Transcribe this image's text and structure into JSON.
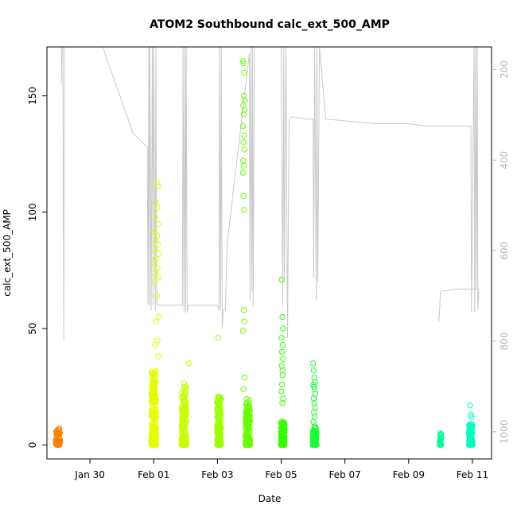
{
  "chart_data": {
    "type": "scatter",
    "title": "ATOM2 Southbound calc_ext_500_AMP",
    "xlabel": "Date",
    "ylabel": "calc_ext_500_AMP",
    "x_axis": {
      "unit": "days since Jan 29",
      "ticks": [
        {
          "value": 1,
          "label": "Jan 30"
        },
        {
          "value": 3,
          "label": "Feb 01"
        },
        {
          "value": 5,
          "label": "Feb 03"
        },
        {
          "value": 7,
          "label": "Feb 05"
        },
        {
          "value": 9,
          "label": "Feb 07"
        },
        {
          "value": 11,
          "label": "Feb 09"
        },
        {
          "value": 13,
          "label": "Feb 11"
        }
      ],
      "range": [
        -0.35,
        13.6
      ]
    },
    "y_axis": {
      "ticks": [
        0,
        50,
        100,
        150
      ],
      "range": [
        -6,
        171
      ]
    },
    "y2_axis": {
      "ticks": [
        200,
        400,
        600,
        800,
        1000
      ],
      "range": [
        1060,
        150
      ],
      "color": "#b8b8b8"
    },
    "line_series": {
      "color": "#c8c8c8",
      "points": [
        [
          0.1,
          155
        ],
        [
          0.12,
          171
        ],
        [
          0.15,
          171
        ],
        [
          0.18,
          45
        ],
        [
          0.2,
          171
        ],
        [
          0.3,
          171
        ],
        [
          0.6,
          171
        ],
        [
          0.85,
          171
        ],
        [
          1.4,
          171
        ],
        [
          2.35,
          134
        ],
        [
          2.8,
          128
        ],
        [
          2.82,
          60
        ],
        [
          2.85,
          171
        ],
        [
          2.87,
          60
        ],
        [
          2.88,
          171
        ],
        [
          2.92,
          58
        ],
        [
          2.96,
          171
        ],
        [
          2.98,
          60
        ],
        [
          3.0,
          171
        ],
        [
          3.05,
          58
        ],
        [
          3.07,
          171
        ],
        [
          3.1,
          60
        ],
        [
          3.3,
          60
        ],
        [
          3.5,
          60
        ],
        [
          3.75,
          60
        ],
        [
          3.9,
          60
        ],
        [
          3.92,
          171
        ],
        [
          3.95,
          57
        ],
        [
          3.98,
          171
        ],
        [
          4.0,
          57
        ],
        [
          4.02,
          171
        ],
        [
          4.05,
          57
        ],
        [
          4.08,
          60
        ],
        [
          4.2,
          60
        ],
        [
          5.0,
          60
        ],
        [
          5.05,
          58
        ],
        [
          5.06,
          171
        ],
        [
          5.1,
          58
        ],
        [
          5.12,
          171
        ],
        [
          5.15,
          50
        ],
        [
          5.18,
          58
        ],
        [
          5.25,
          58
        ],
        [
          5.3,
          86
        ],
        [
          6.0,
          168
        ],
        [
          6.02,
          62
        ],
        [
          6.05,
          171
        ],
        [
          6.08,
          66
        ],
        [
          6.1,
          171
        ],
        [
          6.12,
          60
        ],
        [
          6.16,
          171
        ],
        [
          6.2,
          171
        ],
        [
          6.4,
          171
        ],
        [
          6.45,
          171
        ],
        [
          6.6,
          171
        ],
        [
          6.8,
          171
        ],
        [
          7.0,
          171
        ],
        [
          7.05,
          60
        ],
        [
          7.08,
          171
        ],
        [
          7.1,
          72
        ],
        [
          7.15,
          171
        ],
        [
          7.2,
          46
        ],
        [
          7.25,
          140
        ],
        [
          7.35,
          141
        ],
        [
          7.8,
          140
        ],
        [
          8.0,
          140
        ],
        [
          8.02,
          72
        ],
        [
          8.05,
          171
        ],
        [
          8.1,
          62
        ],
        [
          8.12,
          171
        ],
        [
          8.15,
          70
        ],
        [
          8.2,
          171
        ],
        [
          8.4,
          140
        ],
        [
          10.0,
          138
        ],
        [
          11.0,
          138
        ],
        [
          11.6,
          137
        ],
        [
          12.2,
          137
        ],
        [
          12.95,
          137
        ],
        [
          12.97,
          57
        ],
        [
          13.05,
          171
        ],
        [
          13.07,
          57
        ],
        [
          13.1,
          171
        ],
        [
          13.12,
          67
        ],
        [
          13.15,
          171
        ],
        [
          13.17,
          58
        ],
        [
          13.2,
          67
        ],
        [
          12.5,
          67
        ],
        [
          12.0,
          66
        ],
        [
          11.95,
          53
        ]
      ]
    },
    "scatter_clusters": [
      {
        "x_center": 0.0,
        "x_spread": 0.14,
        "y_max": 7,
        "count": 60,
        "color": "#ff7f00",
        "outliers": []
      },
      {
        "x_center": 3.0,
        "x_spread": 0.16,
        "y_max": 32,
        "count": 220,
        "color": "#e2ff00",
        "outliers": [
          [
            3.1,
            113
          ],
          [
            3.14,
            111
          ],
          [
            3.08,
            104
          ],
          [
            3.12,
            102
          ],
          [
            3.05,
            98
          ],
          [
            3.15,
            95
          ],
          [
            3.02,
            92
          ],
          [
            3.11,
            90
          ],
          [
            3.07,
            88
          ],
          [
            3.13,
            86
          ],
          [
            3.04,
            84
          ],
          [
            3.16,
            82
          ],
          [
            3.09,
            80
          ],
          [
            3.01,
            78
          ],
          [
            3.12,
            76
          ],
          [
            3.06,
            74
          ],
          [
            3.14,
            72
          ],
          [
            3.03,
            70
          ],
          [
            3.1,
            64
          ],
          [
            3.15,
            55
          ],
          [
            3.08,
            53
          ],
          [
            3.12,
            45
          ],
          [
            3.05,
            43
          ],
          [
            3.14,
            38
          ]
        ]
      },
      {
        "x_center": 3.95,
        "x_spread": 0.15,
        "y_max": 27,
        "count": 170,
        "color": "#c6ff00",
        "outliers": [
          [
            4.1,
            35
          ]
        ]
      },
      {
        "x_center": 5.05,
        "x_spread": 0.12,
        "y_max": 22,
        "count": 160,
        "color": "#9dff00",
        "outliers": [
          [
            5.02,
            46
          ]
        ]
      },
      {
        "x_center": 5.95,
        "x_spread": 0.14,
        "y_max": 20,
        "count": 170,
        "color": "#66ff00",
        "outliers": [
          [
            5.8,
            165
          ],
          [
            5.82,
            164
          ],
          [
            5.84,
            160
          ],
          [
            5.83,
            150
          ],
          [
            5.86,
            148
          ],
          [
            5.81,
            146
          ],
          [
            5.85,
            144
          ],
          [
            5.83,
            142
          ],
          [
            5.8,
            137
          ],
          [
            5.84,
            133
          ],
          [
            5.82,
            130
          ],
          [
            5.85,
            127
          ],
          [
            5.81,
            122
          ],
          [
            5.83,
            120
          ],
          [
            5.8,
            117
          ],
          [
            5.82,
            107
          ],
          [
            5.84,
            101
          ],
          [
            5.83,
            58
          ],
          [
            5.85,
            53
          ],
          [
            5.8,
            49
          ],
          [
            5.86,
            29
          ],
          [
            5.82,
            24
          ]
        ]
      },
      {
        "x_center": 7.05,
        "x_spread": 0.12,
        "y_max": 10,
        "count": 150,
        "color": "#33ff00",
        "outliers": [
          [
            7.02,
            71
          ],
          [
            7.04,
            55
          ],
          [
            7.06,
            50
          ],
          [
            7.01,
            46
          ],
          [
            7.05,
            43
          ],
          [
            7.03,
            40
          ],
          [
            7.06,
            37
          ],
          [
            7.02,
            34
          ],
          [
            7.04,
            32
          ],
          [
            7.05,
            30
          ],
          [
            7.03,
            26
          ],
          [
            7.01,
            23
          ],
          [
            7.06,
            20
          ],
          [
            7.04,
            18
          ]
        ]
      },
      {
        "x_center": 8.05,
        "x_spread": 0.12,
        "y_max": 8,
        "count": 110,
        "color": "#1aff33",
        "outliers": [
          [
            8.0,
            35
          ],
          [
            8.02,
            32
          ],
          [
            8.04,
            29
          ],
          [
            8.06,
            27
          ],
          [
            8.01,
            26
          ],
          [
            8.03,
            25
          ],
          [
            8.05,
            24
          ],
          [
            8.07,
            22
          ],
          [
            8.02,
            20
          ],
          [
            8.04,
            18
          ],
          [
            8.06,
            16
          ],
          [
            8.03,
            14
          ],
          [
            8.05,
            12
          ],
          [
            8.01,
            10
          ]
        ]
      },
      {
        "x_center": 12.0,
        "x_spread": 0.05,
        "y_max": 5,
        "count": 25,
        "color": "#00ff99",
        "outliers": []
      },
      {
        "x_center": 12.95,
        "x_spread": 0.12,
        "y_max": 9,
        "count": 80,
        "color": "#00ffbf",
        "outliers": [
          [
            12.92,
            17
          ],
          [
            12.95,
            13
          ],
          [
            12.97,
            12
          ]
        ]
      }
    ]
  }
}
